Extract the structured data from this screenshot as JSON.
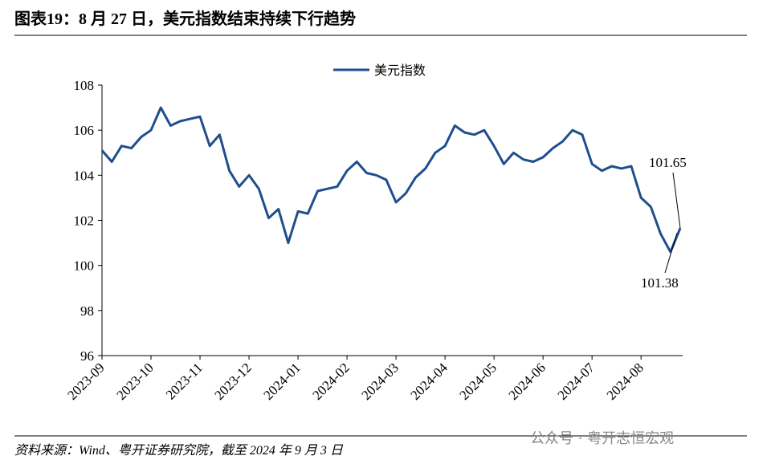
{
  "chart_data": {
    "type": "line",
    "title": "图表19：8 月 27 日，美元指数结束持续下行趋势",
    "categories": [
      "2023-09",
      null,
      null,
      null,
      null,
      "2023-10",
      null,
      null,
      null,
      null,
      "2023-11",
      null,
      null,
      null,
      null,
      "2023-12",
      null,
      null,
      null,
      null,
      "2024-01",
      null,
      null,
      null,
      null,
      "2024-02",
      null,
      null,
      null,
      null,
      "2024-03",
      null,
      null,
      null,
      null,
      "2024-04",
      null,
      null,
      null,
      null,
      "2024-05",
      null,
      null,
      null,
      null,
      "2024-06",
      null,
      null,
      null,
      null,
      "2024-07",
      null,
      null,
      null,
      null,
      "2024-08",
      null,
      null,
      null,
      null
    ],
    "series": [
      {
        "name": "美元指数",
        "color": "#1f4e8c",
        "values": [
          105.1,
          104.6,
          105.3,
          105.2,
          105.7,
          106.0,
          107.0,
          106.2,
          106.4,
          106.5,
          106.6,
          105.3,
          105.8,
          104.2,
          103.5,
          104.0,
          103.4,
          102.1,
          102.5,
          101.0,
          102.4,
          102.3,
          103.3,
          103.4,
          103.5,
          104.2,
          104.6,
          104.1,
          104.0,
          103.8,
          102.8,
          103.2,
          103.9,
          104.3,
          105.0,
          105.3,
          106.2,
          105.9,
          105.8,
          106.0,
          105.3,
          104.5,
          105.0,
          104.7,
          104.6,
          104.8,
          105.2,
          105.5,
          106.0,
          105.8,
          104.5,
          104.2,
          104.4,
          104.3,
          104.4,
          103.0,
          102.6,
          101.4,
          100.6,
          101.65
        ]
      }
    ],
    "ylim": [
      96,
      108
    ],
    "yticks": [
      96,
      98,
      100,
      102,
      104,
      106,
      108
    ],
    "annotations": [
      101.65,
      101.38
    ],
    "source": "资料来源：Wind、粤开证券研究院，截至 2024 年 9 月 3 日",
    "watermark": "公众号 · 粤开志恒宏观"
  }
}
